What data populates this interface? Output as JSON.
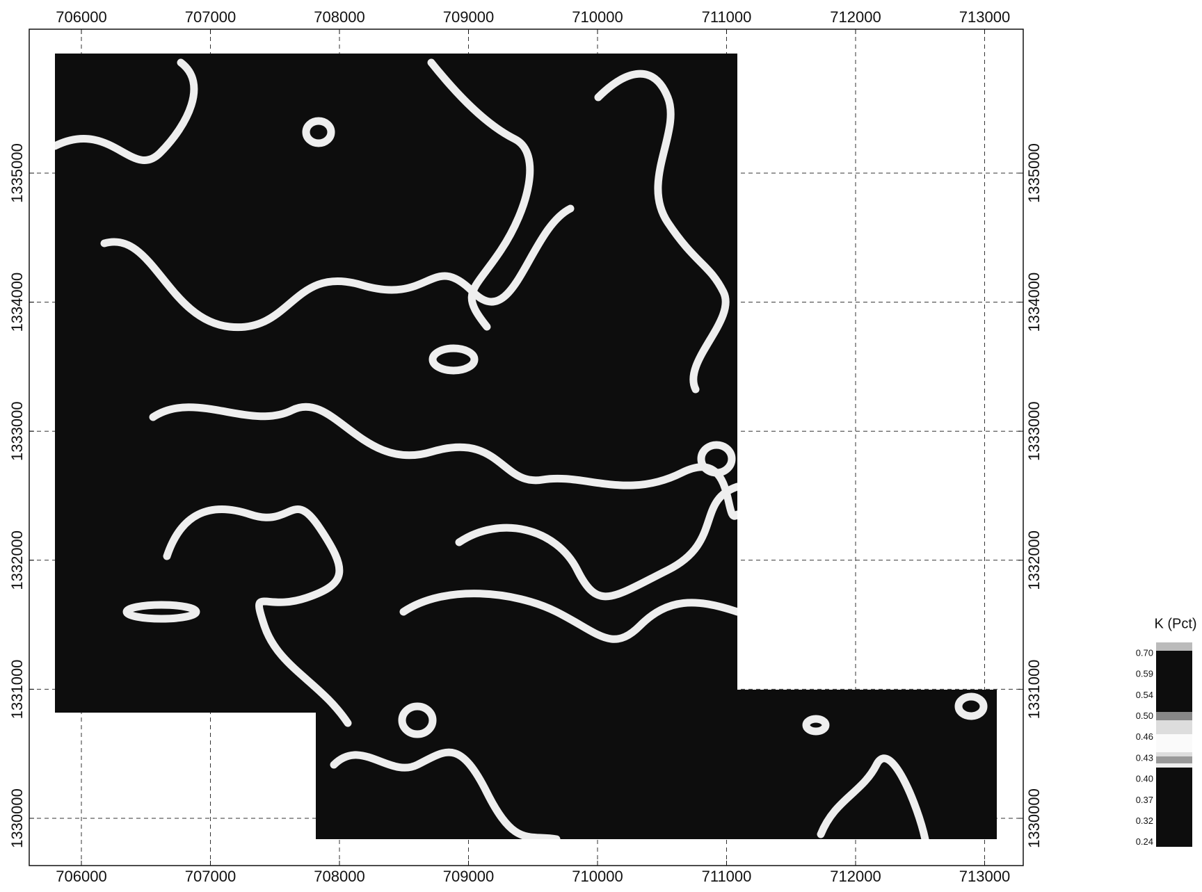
{
  "map": {
    "xticks": [
      706000,
      707000,
      708000,
      709000,
      710000,
      711000,
      712000,
      713000
    ],
    "yticks": [
      1330000,
      1331000,
      1332000,
      1333000,
      1334000,
      1335000
    ]
  },
  "legend": {
    "title": "K (Pct)",
    "labels": [
      "0.70",
      "0.59",
      "0.54",
      "0.50",
      "0.46",
      "0.43",
      "0.40",
      "0.37",
      "0.32",
      "0.24"
    ]
  }
}
